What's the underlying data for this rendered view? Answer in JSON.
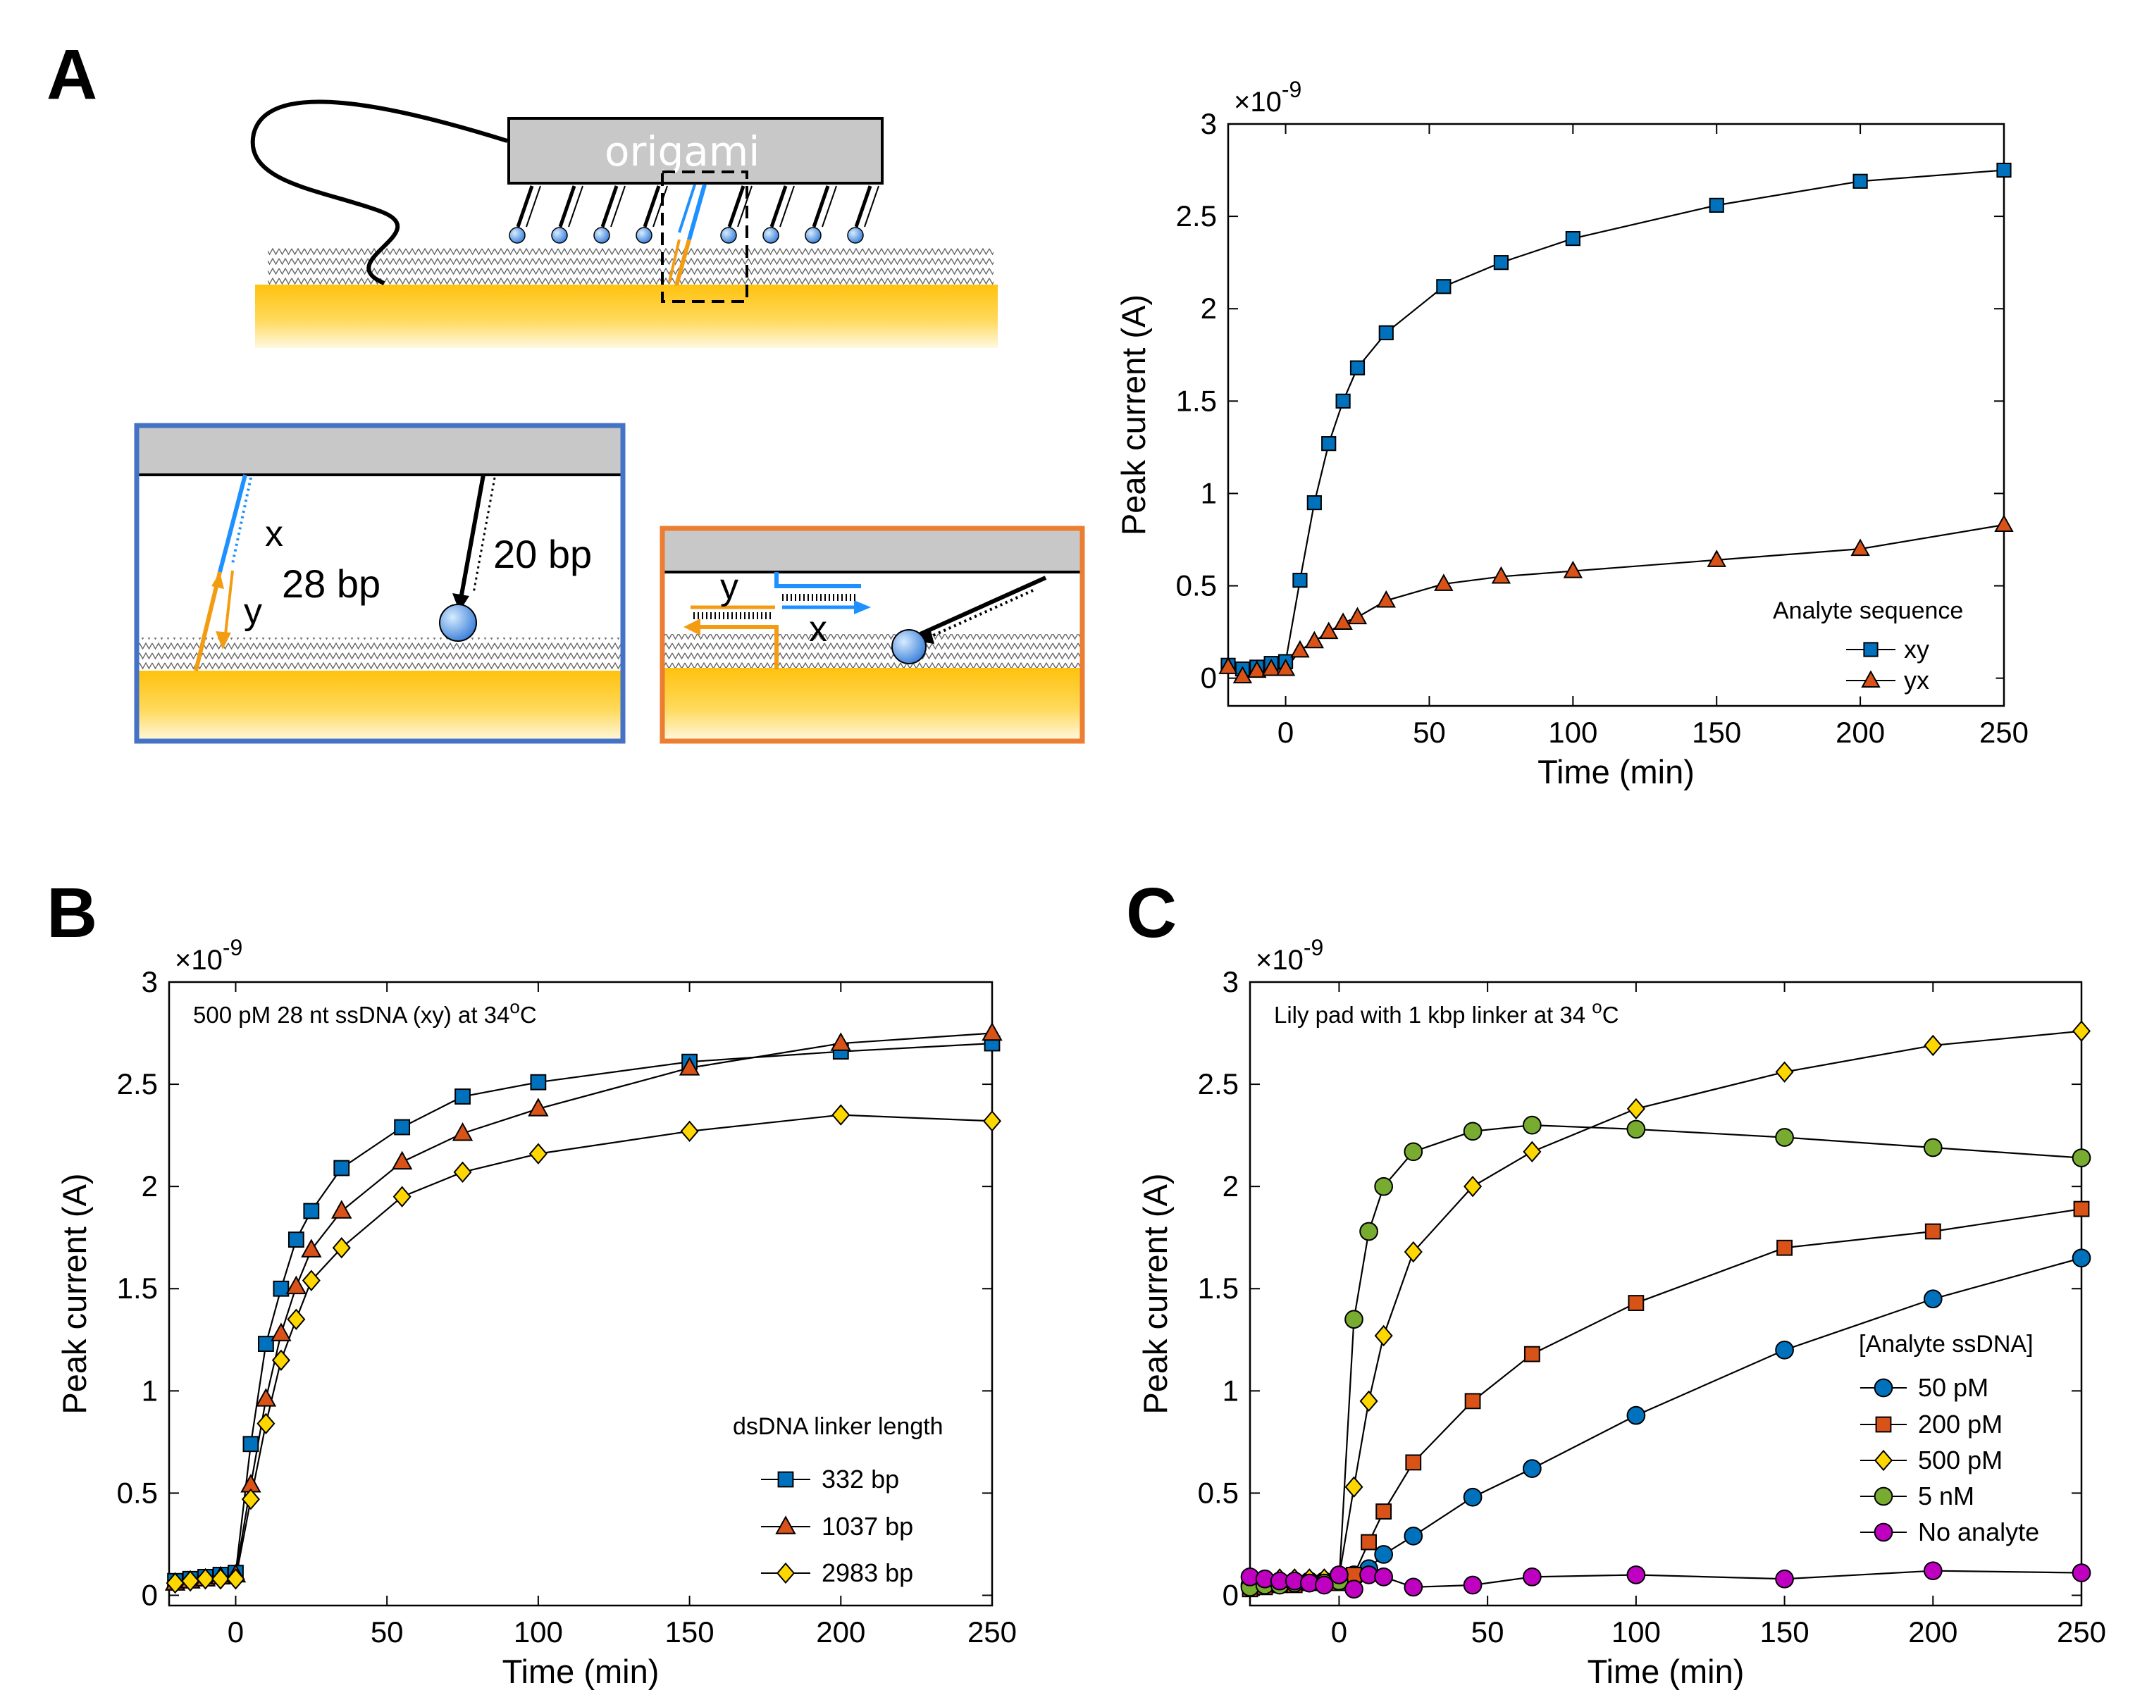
{
  "panel_letters": {
    "a": "A",
    "b": "B",
    "c": "C"
  },
  "diagram": {
    "origami_label": "origami",
    "blue_box": {
      "x_label": "x",
      "y_label": "y",
      "bp28_label": "28 bp",
      "bp20_label": "20 bp"
    },
    "orange_box": {
      "y_label": "y",
      "x_label": "x"
    }
  },
  "colors": {
    "gold": "#FFC20E",
    "gold_light": "#FFF6D8",
    "gray_origami": "#C8C8C8",
    "blue_frame": "#4472C4",
    "orange_frame": "#ED7D31",
    "strand_blue": "#1E90FF",
    "strand_orange": "#F39C12",
    "marker_blue": "#0072BD",
    "marker_orange": "#D95319",
    "marker_yellow": "#FFD700",
    "marker_green": "#77AC30",
    "marker_magenta": "#C000C0"
  },
  "chart_data": [
    {
      "id": "A",
      "type": "line",
      "xlabel": "Time (min)",
      "ylabel": "Peak current (A)",
      "exponent": "×10",
      "exponent_power": "-9",
      "xlim": [
        -20,
        250
      ],
      "ylim": [
        -0.15,
        3
      ],
      "xticks": [
        0,
        50,
        100,
        150,
        200,
        250
      ],
      "yticks": [
        0,
        0.5,
        1,
        1.5,
        2,
        2.5,
        3
      ],
      "legend_title": "Analyte sequence",
      "legend_position": "bottom-right",
      "series": [
        {
          "name": "xy",
          "marker": "square",
          "color": "#0072BD",
          "x": [
            -20,
            -15,
            -10,
            -5,
            0,
            5,
            10,
            15,
            20,
            25,
            35,
            55,
            75,
            100,
            150,
            200,
            250
          ],
          "y": [
            0.07,
            0.05,
            0.06,
            0.08,
            0.09,
            0.53,
            0.95,
            1.27,
            1.5,
            1.68,
            1.87,
            2.12,
            2.25,
            2.38,
            2.56,
            2.69,
            2.75
          ]
        },
        {
          "name": "yx",
          "marker": "triangle",
          "color": "#D95319",
          "x": [
            -20,
            -15,
            -10,
            -5,
            0,
            5,
            10,
            15,
            20,
            25,
            35,
            55,
            75,
            100,
            150,
            200,
            250
          ],
          "y": [
            0.06,
            0.01,
            0.04,
            0.05,
            0.05,
            0.15,
            0.2,
            0.25,
            0.3,
            0.33,
            0.42,
            0.51,
            0.55,
            0.58,
            0.64,
            0.7,
            0.83
          ]
        }
      ]
    },
    {
      "id": "B",
      "type": "line",
      "xlabel": "Time (min)",
      "ylabel": "Peak current (A)",
      "exponent": "×10",
      "exponent_power": "-9",
      "annotation": "500 pM 28 nt ssDNA (xy) at 34",
      "annotation_sup": "o",
      "annotation_tail": "C",
      "xlim": [
        -22,
        250
      ],
      "ylim": [
        -0.05,
        3
      ],
      "xticks": [
        0,
        50,
        100,
        150,
        200,
        250
      ],
      "yticks": [
        0,
        0.5,
        1,
        1.5,
        2,
        2.5,
        3
      ],
      "legend_title": "dsDNA linker length",
      "legend_position": "bottom-right",
      "series": [
        {
          "name": "332 bp",
          "marker": "square",
          "color": "#0072BD",
          "x": [
            -20,
            -15,
            -10,
            -5,
            0,
            5,
            10,
            15,
            20,
            25,
            35,
            55,
            75,
            100,
            150,
            200,
            250
          ],
          "y": [
            0.07,
            0.08,
            0.09,
            0.1,
            0.11,
            0.74,
            1.23,
            1.5,
            1.74,
            1.88,
            2.09,
            2.29,
            2.44,
            2.51,
            2.61,
            2.66,
            2.7
          ]
        },
        {
          "name": "1037 bp",
          "marker": "triangle",
          "color": "#D95319",
          "x": [
            -20,
            -15,
            -10,
            -5,
            0,
            5,
            10,
            15,
            20,
            25,
            35,
            55,
            75,
            100,
            150,
            200,
            250
          ],
          "y": [
            0.06,
            0.07,
            0.08,
            0.09,
            0.1,
            0.54,
            0.96,
            1.28,
            1.51,
            1.69,
            1.88,
            2.12,
            2.26,
            2.38,
            2.58,
            2.7,
            2.75
          ]
        },
        {
          "name": "2983 bp",
          "marker": "diamond",
          "color": "#FFD700",
          "x": [
            -20,
            -15,
            -10,
            -5,
            0,
            5,
            10,
            15,
            20,
            25,
            35,
            55,
            75,
            100,
            150,
            200,
            250
          ],
          "y": [
            0.06,
            0.07,
            0.08,
            0.08,
            0.08,
            0.47,
            0.84,
            1.15,
            1.35,
            1.54,
            1.7,
            1.95,
            2.07,
            2.16,
            2.27,
            2.35,
            2.32
          ]
        }
      ]
    },
    {
      "id": "C",
      "type": "line",
      "xlabel": "Time (min)",
      "ylabel": "Peak current (A)",
      "exponent": "×10",
      "exponent_power": "-9",
      "annotation": "Lily pad with 1 kbp linker at 34 ",
      "annotation_sup": "o",
      "annotation_tail": "C",
      "xlim": [
        -30,
        250
      ],
      "ylim": [
        -0.05,
        3
      ],
      "xticks": [
        0,
        50,
        100,
        150,
        200,
        250
      ],
      "yticks": [
        0,
        0.5,
        1,
        1.5,
        2,
        2.5,
        3
      ],
      "legend_title": "[Analyte ssDNA]",
      "legend_position": "right",
      "series": [
        {
          "name": "50 pM",
          "marker": "circle",
          "color": "#0072BD",
          "x": [
            -30,
            -25,
            -20,
            -15,
            -10,
            -5,
            0,
            5,
            10,
            15,
            25,
            45,
            65,
            100,
            150,
            200,
            250
          ],
          "y": [
            0.05,
            0.06,
            0.06,
            0.07,
            0.07,
            0.07,
            0.07,
            0.1,
            0.13,
            0.2,
            0.29,
            0.48,
            0.62,
            0.88,
            1.2,
            1.45,
            1.65
          ]
        },
        {
          "name": "200 pM",
          "marker": "square",
          "color": "#D95319",
          "x": [
            -30,
            -25,
            -20,
            -15,
            -10,
            -5,
            0,
            5,
            10,
            15,
            25,
            45,
            65,
            100,
            150,
            200,
            250
          ],
          "y": [
            0.03,
            0.04,
            0.05,
            0.05,
            0.06,
            0.06,
            0.06,
            0.1,
            0.26,
            0.41,
            0.65,
            0.95,
            1.18,
            1.43,
            1.7,
            1.78,
            1.89
          ]
        },
        {
          "name": "500 pM",
          "marker": "diamond",
          "color": "#FFD700",
          "x": [
            -30,
            -25,
            -20,
            -15,
            -10,
            -5,
            0,
            5,
            10,
            15,
            25,
            45,
            65,
            100,
            150,
            200,
            250
          ],
          "y": [
            0.06,
            0.07,
            0.08,
            0.08,
            0.08,
            0.08,
            0.09,
            0.53,
            0.95,
            1.27,
            1.68,
            2.0,
            2.17,
            2.38,
            2.56,
            2.69,
            2.76
          ]
        },
        {
          "name": "5 nM",
          "marker": "circle",
          "color": "#77AC30",
          "x": [
            -30,
            -25,
            -20,
            -15,
            -10,
            -5,
            0,
            5,
            10,
            15,
            25,
            45,
            65,
            100,
            150,
            200,
            250
          ],
          "y": [
            0.04,
            0.05,
            0.05,
            0.06,
            0.06,
            0.06,
            0.07,
            1.35,
            1.78,
            2.0,
            2.17,
            2.27,
            2.3,
            2.28,
            2.24,
            2.19,
            2.14
          ]
        },
        {
          "name": "No analyte",
          "marker": "circle",
          "color": "#C000C0",
          "x": [
            -30,
            -25,
            -20,
            -15,
            -10,
            -5,
            0,
            5,
            10,
            15,
            25,
            45,
            65,
            100,
            150,
            200,
            250
          ],
          "y": [
            0.09,
            0.08,
            0.07,
            0.07,
            0.06,
            0.05,
            0.1,
            0.03,
            0.1,
            0.09,
            0.04,
            0.05,
            0.09,
            0.1,
            0.08,
            0.12,
            0.11
          ]
        }
      ]
    }
  ]
}
